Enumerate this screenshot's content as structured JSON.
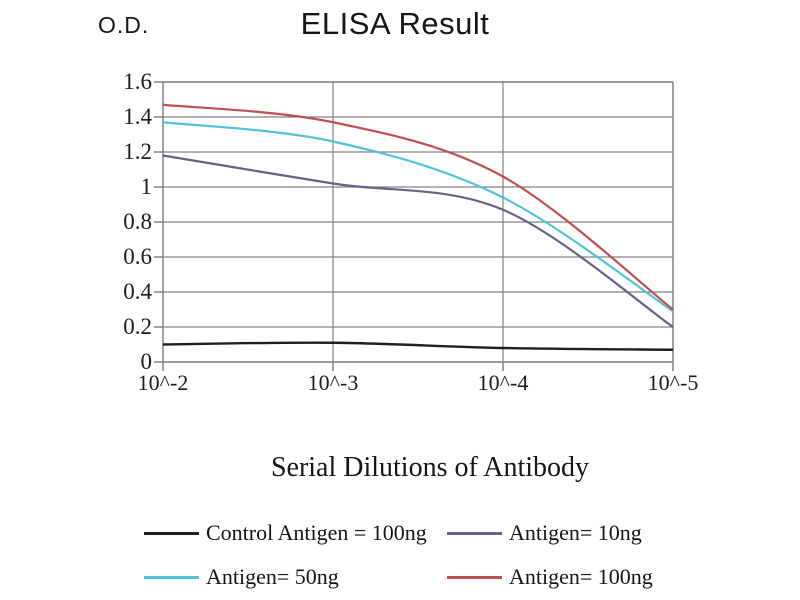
{
  "chart_data": {
    "type": "line",
    "title": "ELISA Result",
    "ylabel": "O.D.",
    "xlabel": "Serial Dilutions of Antibody",
    "categories": [
      "10^-2",
      "10^-3",
      "10^-4",
      "10^-5"
    ],
    "y_ticks": [
      "1.6",
      "1.4",
      "1.2",
      "1",
      "0.8",
      "0.6",
      "0.4",
      "0.2",
      "0"
    ],
    "ylim": [
      0,
      1.6
    ],
    "grid": true,
    "line_style": "smooth",
    "legend_position": "bottom",
    "series": [
      {
        "name": "Control Antigen = 100ng",
        "color": "#1f1f1f",
        "values": [
          0.1,
          0.11,
          0.08,
          0.07
        ]
      },
      {
        "name": "Antigen= 10ng",
        "color": "#6e5f87",
        "values": [
          1.18,
          1.02,
          0.87,
          0.2
        ]
      },
      {
        "name": "Antigen= 50ng",
        "color": "#54c2d9",
        "values": [
          1.37,
          1.26,
          0.94,
          0.29
        ]
      },
      {
        "name": "Antigen= 100ng",
        "color": "#c0504d",
        "values": [
          1.47,
          1.37,
          1.06,
          0.3
        ]
      }
    ],
    "grid_color": "#828282"
  }
}
